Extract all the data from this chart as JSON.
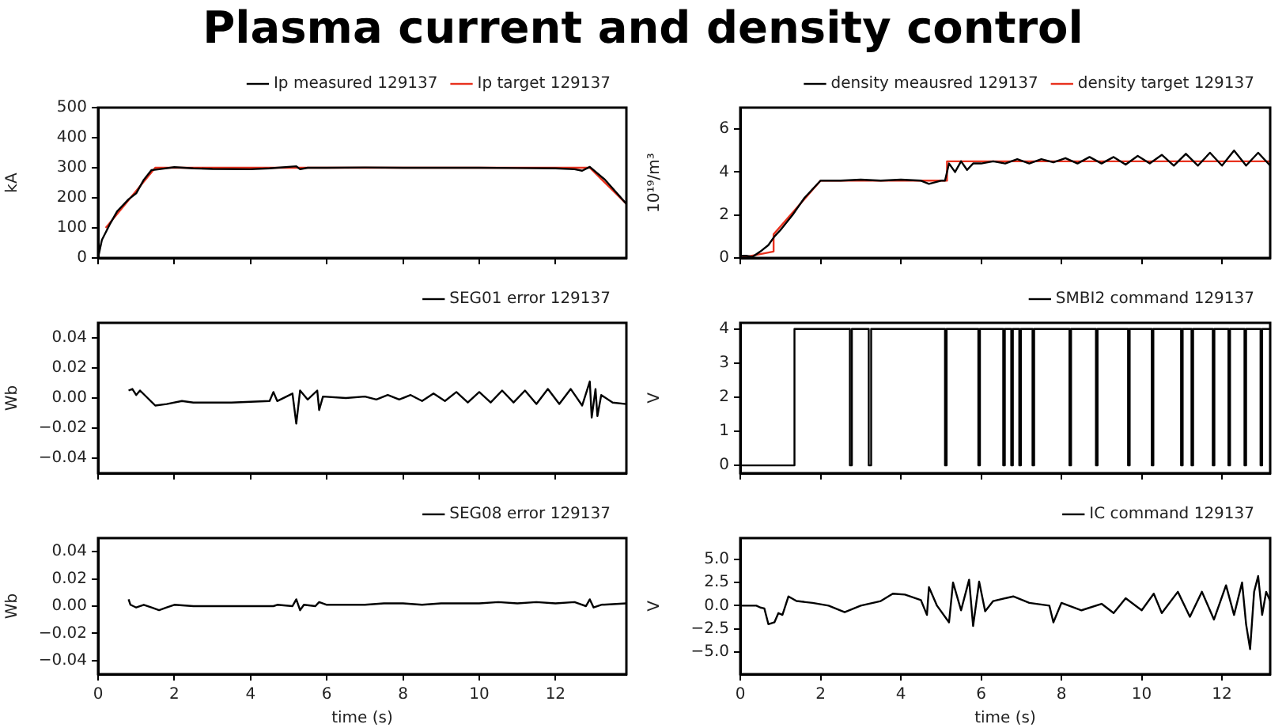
{
  "chart_data": [
    {
      "type": "line",
      "title": "Plasma current and density control",
      "ylabel": "kA",
      "xlim": [
        0,
        13.86
      ],
      "xticks": [
        0,
        2,
        4,
        6,
        8,
        10,
        12
      ],
      "ylim": [
        0,
        500
      ],
      "yticks": [
        0,
        100,
        200,
        300,
        400,
        500
      ],
      "tick_labels": "y",
      "legend": "top right",
      "grid": false,
      "series": [
        {
          "name": "Ip measured 129137",
          "color": "#000000",
          "x": [
            0,
            0.1,
            0.3,
            0.5,
            0.8,
            1.0,
            1.2,
            1.4,
            1.6,
            2.0,
            2.5,
            3.0,
            4.0,
            4.5,
            5.2,
            5.3,
            5.5,
            6,
            7,
            8,
            9,
            10,
            11,
            12,
            12.5,
            12.7,
            12.9,
            13.3,
            13.86
          ],
          "values": [
            0,
            60,
            110,
            155,
            195,
            215,
            260,
            292,
            295,
            302,
            298,
            296,
            295,
            298,
            305,
            295,
            300,
            300,
            301,
            300,
            300,
            300,
            299,
            298,
            295,
            290,
            303,
            260,
            180
          ]
        },
        {
          "name": "Ip target 129137",
          "color": "#e8321e",
          "x": [
            0.2,
            1.5,
            12.9,
            13.86
          ],
          "values": [
            100,
            300,
            300,
            180
          ]
        }
      ]
    },
    {
      "type": "line",
      "ylabel": "10¹⁹/m³",
      "xlim": [
        0,
        13.2
      ],
      "xticks": [
        0,
        2,
        4,
        6,
        8,
        10,
        12
      ],
      "ylim": [
        0,
        7
      ],
      "yticks": [
        0,
        2,
        4,
        6
      ],
      "tick_labels": "y",
      "legend": "top right",
      "grid": false,
      "series": [
        {
          "name": "density meausred 129137",
          "color": "#000000",
          "x": [
            0,
            0.15,
            0.3,
            0.5,
            0.7,
            0.85,
            1.0,
            1.3,
            1.6,
            2.0,
            2.5,
            3,
            3.5,
            4,
            4.5,
            4.7,
            5.0,
            5.1,
            5.2,
            5.35,
            5.5,
            5.65,
            5.8,
            6.0,
            6.3,
            6.6,
            6.9,
            7.2,
            7.5,
            7.8,
            8.1,
            8.4,
            8.7,
            9.0,
            9.3,
            9.6,
            9.9,
            10.2,
            10.5,
            10.8,
            11.1,
            11.4,
            11.7,
            12.0,
            12.3,
            12.6,
            12.9,
            13.2
          ],
          "values": [
            0.1,
            0.1,
            0.05,
            0.3,
            0.6,
            1.0,
            1.3,
            2.0,
            2.8,
            3.6,
            3.6,
            3.65,
            3.6,
            3.65,
            3.6,
            3.45,
            3.6,
            3.6,
            4.4,
            4.0,
            4.5,
            4.1,
            4.4,
            4.4,
            4.5,
            4.4,
            4.6,
            4.4,
            4.6,
            4.45,
            4.65,
            4.4,
            4.7,
            4.4,
            4.7,
            4.35,
            4.75,
            4.4,
            4.8,
            4.3,
            4.85,
            4.3,
            4.9,
            4.3,
            5.0,
            4.3,
            4.9,
            4.3
          ]
        },
        {
          "name": "density target 129137",
          "color": "#e8321e",
          "x": [
            0,
            0.83,
            0.83,
            2.0,
            5.15,
            5.15,
            13.2
          ],
          "values": [
            0,
            0.3,
            1.1,
            3.6,
            3.6,
            4.5,
            4.5
          ]
        }
      ]
    },
    {
      "type": "line",
      "ylabel": "Wb",
      "xlim": [
        0,
        13.86
      ],
      "xticks": [
        0,
        2,
        4,
        6,
        8,
        10,
        12
      ],
      "ylim": [
        -0.05,
        0.05
      ],
      "yticks": [
        {
          "value": -0.04,
          "label": "−0.04"
        },
        {
          "value": -0.02,
          "label": "−0.02"
        },
        {
          "value": 0,
          "label": "0.00"
        },
        {
          "value": 0.02,
          "label": "0.02"
        },
        {
          "value": 0.04,
          "label": "0.04"
        }
      ],
      "tick_labels": "y",
      "legend": "top right",
      "grid": false,
      "series": [
        {
          "name": "SEG01 error 129137",
          "color": "#000000",
          "x": [
            0.8,
            0.9,
            1.0,
            1.1,
            1.3,
            1.5,
            1.8,
            2.2,
            2.5,
            3,
            3.5,
            4.5,
            4.6,
            4.7,
            5.1,
            5.2,
            5.3,
            5.5,
            5.75,
            5.8,
            5.9,
            6.5,
            7,
            7.3,
            7.6,
            7.9,
            8.2,
            8.5,
            8.8,
            9.1,
            9.4,
            9.7,
            10.0,
            10.3,
            10.6,
            10.9,
            11.2,
            11.5,
            11.8,
            12.1,
            12.4,
            12.7,
            12.9,
            12.95,
            13.05,
            13.1,
            13.2,
            13.5,
            13.86
          ],
          "values": [
            0.005,
            0.006,
            0.002,
            0.005,
            0.0,
            -0.005,
            -0.004,
            -0.002,
            -0.003,
            -0.003,
            -0.003,
            -0.002,
            0.004,
            -0.002,
            0.003,
            -0.017,
            0.005,
            -0.001,
            0.005,
            -0.008,
            0.001,
            0.0,
            0.001,
            -0.001,
            0.002,
            -0.001,
            0.002,
            -0.002,
            0.003,
            -0.002,
            0.004,
            -0.003,
            0.004,
            -0.003,
            0.005,
            -0.003,
            0.005,
            -0.004,
            0.006,
            -0.004,
            0.006,
            -0.005,
            0.011,
            -0.013,
            0.006,
            -0.012,
            0.002,
            -0.003,
            -0.004
          ]
        }
      ]
    },
    {
      "type": "step",
      "ylabel": "V",
      "xlim": [
        0,
        13.2
      ],
      "xticks": [
        0,
        2,
        4,
        6,
        8,
        10,
        12
      ],
      "ylim": [
        -0.23,
        4.18
      ],
      "yticks": [
        0,
        1,
        2,
        3,
        4
      ],
      "tick_labels": "y",
      "legend": "top right",
      "grid": false,
      "series": [
        {
          "name": "SMBI2 command 129137",
          "color": "#000000",
          "x": [
            0,
            1.35,
            2.73,
            2.78,
            3.2,
            3.26,
            5.1,
            5.14,
            5.93,
            5.97,
            6.55,
            6.59,
            6.75,
            6.79,
            6.95,
            6.99,
            7.28,
            7.32,
            8.2,
            8.24,
            8.86,
            8.9,
            9.66,
            9.7,
            10.25,
            10.29,
            10.98,
            11.02,
            11.24,
            11.28,
            11.77,
            11.81,
            12.16,
            12.2,
            12.56,
            12.6,
            12.96,
            13.0,
            13.2
          ],
          "values": [
            0,
            4,
            0,
            4,
            0,
            4,
            0,
            4,
            0,
            4,
            0,
            4,
            0,
            4,
            0,
            4,
            0,
            4,
            0,
            4,
            0,
            4,
            0,
            4,
            0,
            4,
            0,
            4,
            0,
            4,
            0,
            4,
            0,
            4,
            0,
            4,
            0,
            4,
            4
          ]
        }
      ]
    },
    {
      "type": "line",
      "xlabel": "time (s)",
      "ylabel": "Wb",
      "xlim": [
        0,
        13.86
      ],
      "xticks": [
        0,
        2,
        4,
        6,
        8,
        10,
        12
      ],
      "ylim": [
        -0.05,
        0.05
      ],
      "yticks": [
        {
          "value": -0.04,
          "label": "−0.04"
        },
        {
          "value": -0.02,
          "label": "−0.02"
        },
        {
          "value": 0,
          "label": "0.00"
        },
        {
          "value": 0.02,
          "label": "0.02"
        },
        {
          "value": 0.04,
          "label": "0.04"
        }
      ],
      "legend": "top right",
      "grid": false,
      "series": [
        {
          "name": "SEG08 error 129137",
          "color": "#000000",
          "x": [
            0.8,
            0.85,
            1.0,
            1.2,
            1.4,
            1.6,
            1.8,
            2.0,
            2.5,
            3,
            4,
            4.6,
            4.7,
            5.1,
            5.2,
            5.3,
            5.4,
            5.7,
            5.8,
            6,
            7,
            7.5,
            8,
            8.5,
            9,
            9.5,
            10,
            10.5,
            11,
            11.5,
            12,
            12.5,
            12.8,
            12.9,
            13.0,
            13.2,
            13.86
          ],
          "values": [
            0.005,
            0.001,
            -0.001,
            0.001,
            -0.001,
            -0.003,
            -0.001,
            0.001,
            0.0,
            0.0,
            0.0,
            0.0,
            0.001,
            0.0,
            0.005,
            -0.003,
            0.001,
            0.0,
            0.003,
            0.001,
            0.001,
            0.002,
            0.002,
            0.001,
            0.002,
            0.002,
            0.002,
            0.003,
            0.002,
            0.003,
            0.002,
            0.003,
            0.0,
            0.005,
            -0.001,
            0.001,
            0.002
          ]
        }
      ]
    },
    {
      "type": "line",
      "xlabel": "time (s)",
      "ylabel": "V",
      "xlim": [
        0,
        13.2
      ],
      "xticks": [
        0,
        2,
        4,
        6,
        8,
        10,
        12
      ],
      "ylim": [
        -7.4,
        7.3
      ],
      "yticks": [
        {
          "value": -5,
          "label": "−5.0"
        },
        {
          "value": -2.5,
          "label": "−2.5"
        },
        {
          "value": 0,
          "label": "0.0"
        },
        {
          "value": 2.5,
          "label": "2.5"
        },
        {
          "value": 5,
          "label": "5.0"
        }
      ],
      "legend": "top right",
      "grid": false,
      "series": [
        {
          "name": "IC command 129137",
          "color": "#000000",
          "x": [
            0,
            0.4,
            0.5,
            0.6,
            0.7,
            0.85,
            0.95,
            1.05,
            1.2,
            1.4,
            1.8,
            2.2,
            2.6,
            3,
            3.5,
            3.8,
            4.1,
            4.5,
            4.65,
            4.7,
            4.9,
            5.2,
            5.3,
            5.5,
            5.7,
            5.8,
            5.95,
            6.1,
            6.3,
            6.8,
            7.2,
            7.7,
            7.8,
            8,
            8.5,
            9,
            9.3,
            9.6,
            10,
            10.3,
            10.5,
            10.9,
            11.2,
            11.5,
            11.8,
            12.1,
            12.3,
            12.5,
            12.6,
            12.7,
            12.8,
            12.9,
            13.0,
            13.1,
            13.2
          ],
          "values": [
            0,
            0,
            -0.2,
            -0.3,
            -2.0,
            -1.8,
            -0.8,
            -1.0,
            1.0,
            0.5,
            0.3,
            0.0,
            -0.7,
            0.0,
            0.5,
            1.3,
            1.2,
            0.6,
            -1.0,
            2.0,
            0.0,
            -1.8,
            2.5,
            -0.5,
            2.8,
            -2.2,
            2.6,
            -0.6,
            0.5,
            1.0,
            0.3,
            0.0,
            -1.8,
            0.3,
            -0.5,
            0.2,
            -0.8,
            0.8,
            -0.5,
            1.3,
            -0.8,
            1.5,
            -1.2,
            1.5,
            -1.5,
            2.2,
            -1.0,
            2.5,
            -2.0,
            -4.7,
            1.5,
            3.2,
            -1.0,
            1.5,
            0.5
          ]
        }
      ]
    }
  ]
}
